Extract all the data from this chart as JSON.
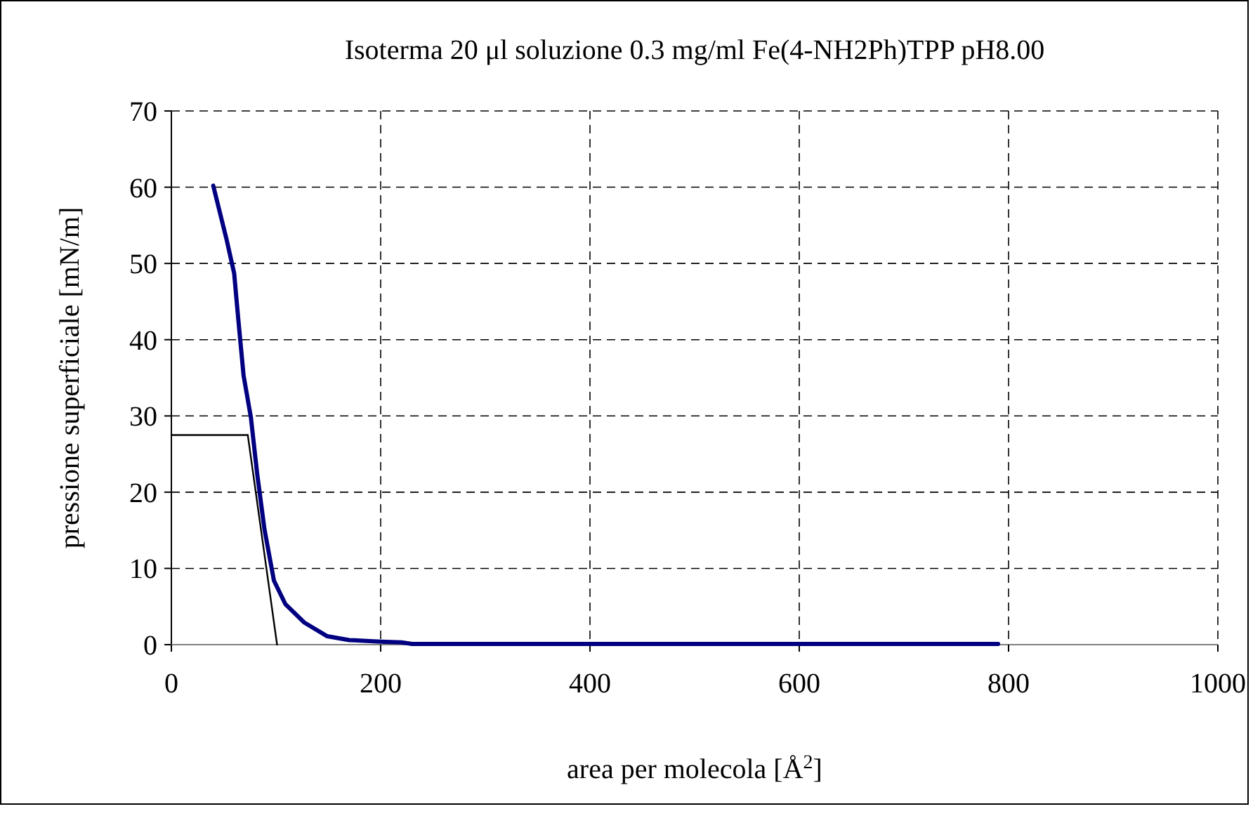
{
  "chart_data": {
    "type": "line",
    "title": "Isoterma 20 μl soluzione 0.3 mg/ml Fe(4-NH2Ph)TPP pH8.00",
    "xlabel": "area per molecola [Å$^{2}$]",
    "ylabel": "pressione superficiale [mN/m]",
    "xlim": [
      0,
      1000
    ],
    "xticks": [
      0,
      200,
      400,
      600,
      800,
      1000
    ],
    "ylim": [
      0,
      70
    ],
    "yticks": [
      0,
      10,
      20,
      30,
      40,
      50,
      60,
      70
    ],
    "grid": true,
    "marker": "none",
    "line_style": "solid",
    "series": [
      {
        "color": "#000080",
        "x": [
          40,
          53,
          60,
          64,
          69,
          76,
          82,
          89,
          98,
          109,
          127,
          149,
          170,
          200,
          220,
          230,
          400,
          600,
          790
        ],
        "values": [
          60.2,
          53,
          48.7,
          42.6,
          35.3,
          29.8,
          22.4,
          15.1,
          8.4,
          5.3,
          2.9,
          1.1,
          0.6,
          0.4,
          0.3,
          0.1,
          0.1,
          0.1,
          0.1
        ]
      },
      {
        "type": "line",
        "color": "#000000",
        "x": [
          0,
          73
        ],
        "values": [
          27.5,
          27.5
        ]
      },
      {
        "type": "line",
        "color": "#000000",
        "x": [
          73,
          101
        ],
        "values": [
          27.5,
          0
        ]
      }
    ]
  }
}
